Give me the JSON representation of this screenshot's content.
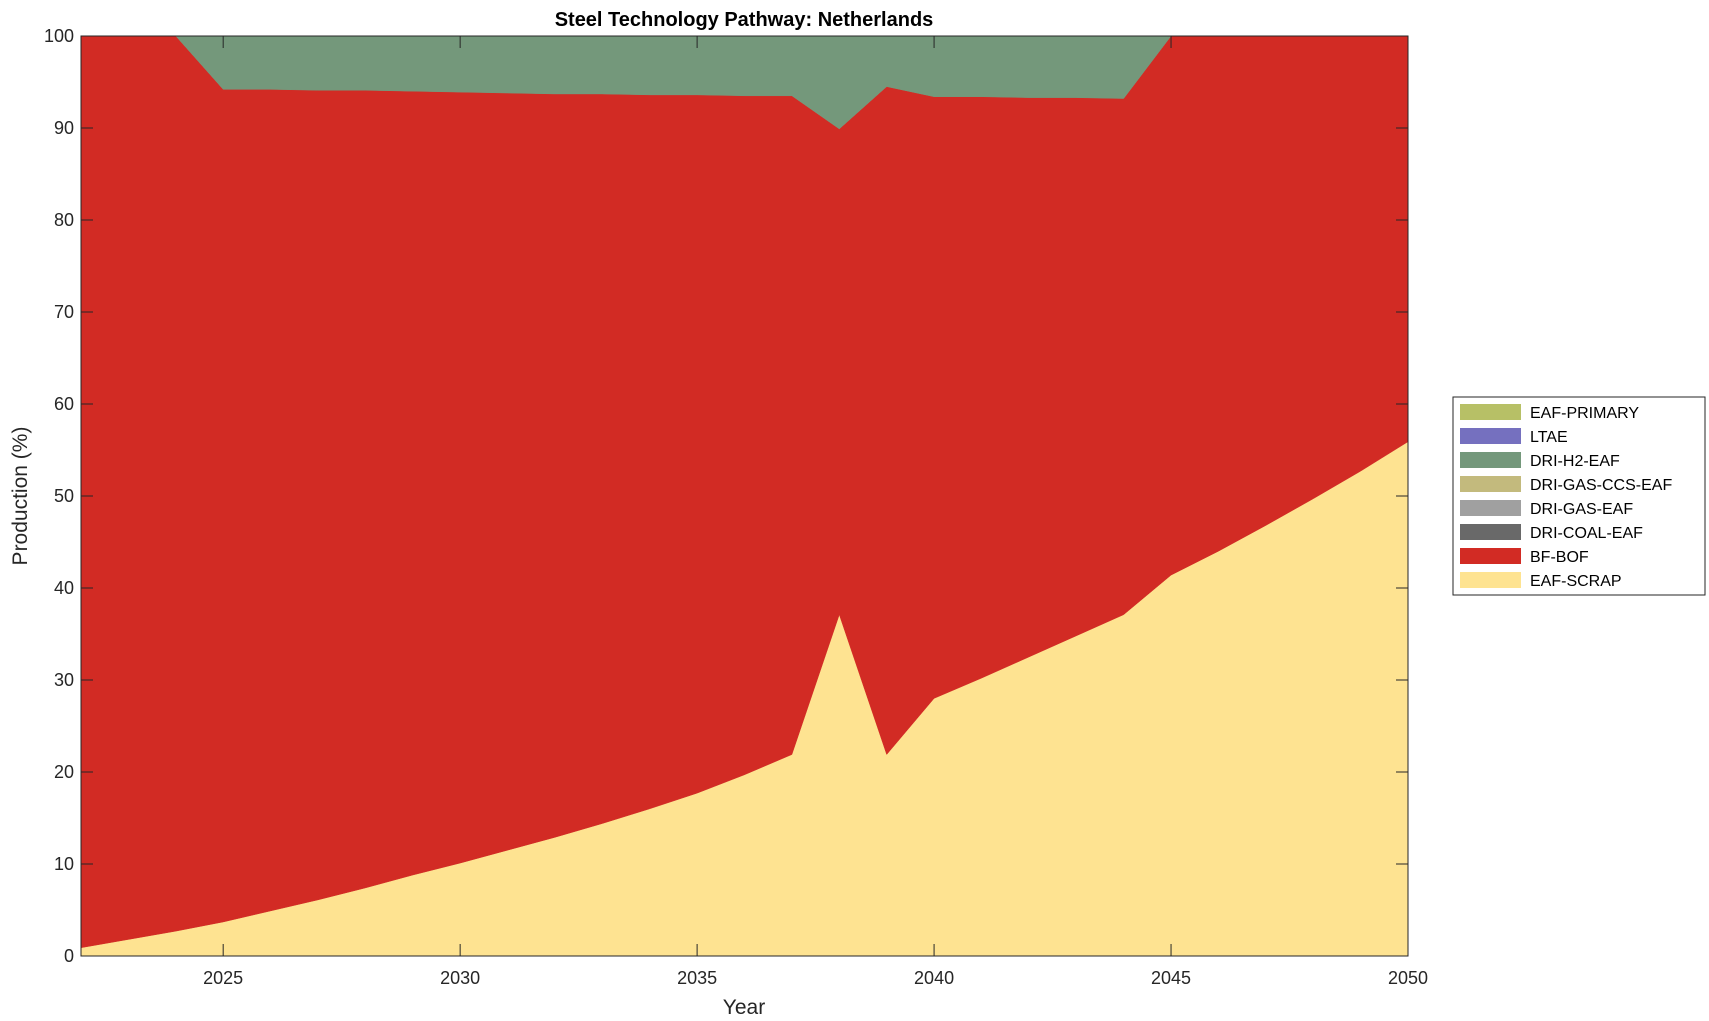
{
  "chart_data": {
    "type": "area",
    "stacked": true,
    "title": "Steel Technology Pathway: Netherlands",
    "xlabel": "Year",
    "ylabel": "Production (%)",
    "xlim": [
      2022,
      2050
    ],
    "ylim": [
      0,
      100
    ],
    "x_ticks": [
      2025,
      2030,
      2035,
      2040,
      2045,
      2050
    ],
    "y_ticks": [
      0,
      10,
      20,
      30,
      40,
      50,
      60,
      70,
      80,
      90,
      100
    ],
    "grid": false,
    "legend_position": "right",
    "x": [
      2022,
      2023,
      2024,
      2025,
      2026,
      2027,
      2028,
      2029,
      2030,
      2031,
      2032,
      2033,
      2034,
      2035,
      2036,
      2037,
      2038,
      2039,
      2040,
      2041,
      2042,
      2043,
      2044,
      2045,
      2046,
      2047,
      2048,
      2049,
      2050
    ],
    "series": [
      {
        "name": "EAF-SCRAP",
        "color": "#FEE391",
        "values": [
          0.9,
          1.8,
          2.7,
          3.7,
          4.9,
          6.1,
          7.4,
          8.8,
          10.1,
          11.5,
          12.9,
          14.4,
          16.0,
          17.7,
          19.7,
          21.9,
          37.1,
          21.9,
          28.0,
          30.2,
          32.5,
          34.8,
          37.1,
          41.4,
          44.0,
          46.8,
          49.7,
          52.7,
          55.9
        ]
      },
      {
        "name": "BF-BOF",
        "color": "#D22B24",
        "values": [
          99.1,
          98.2,
          97.3,
          90.5,
          89.3,
          88.0,
          86.7,
          85.2,
          83.8,
          82.3,
          80.8,
          79.3,
          77.6,
          75.9,
          73.8,
          71.6,
          52.8,
          72.6,
          65.4,
          63.2,
          60.8,
          58.5,
          56.1,
          58.6,
          56.0,
          53.2,
          50.3,
          47.3,
          44.1
        ]
      },
      {
        "name": "DRI-COAL-EAF",
        "color": "#696969",
        "values": [
          0,
          0,
          0,
          0,
          0,
          0,
          0,
          0,
          0,
          0,
          0,
          0,
          0,
          0,
          0,
          0,
          0,
          0,
          0,
          0,
          0,
          0,
          0,
          0,
          0,
          0,
          0,
          0,
          0
        ]
      },
      {
        "name": "DRI-GAS-EAF",
        "color": "#A0A0A0",
        "values": [
          0,
          0,
          0,
          0,
          0,
          0,
          0,
          0,
          0,
          0,
          0,
          0,
          0,
          0,
          0,
          0,
          0,
          0,
          0,
          0,
          0,
          0,
          0,
          0,
          0,
          0,
          0,
          0,
          0
        ]
      },
      {
        "name": "DRI-GAS-CCS-EAF",
        "color": "#C3BA7D",
        "values": [
          0,
          0,
          0,
          0,
          0,
          0,
          0,
          0,
          0,
          0,
          0,
          0,
          0,
          0,
          0,
          0,
          0,
          0,
          0,
          0,
          0,
          0,
          0,
          0,
          0,
          0,
          0,
          0,
          0
        ]
      },
      {
        "name": "DRI-H2-EAF",
        "color": "#74987B",
        "values": [
          0,
          0,
          0,
          5.8,
          5.8,
          5.9,
          5.9,
          6.0,
          6.1,
          6.2,
          6.3,
          6.3,
          6.4,
          6.4,
          6.5,
          6.5,
          10.1,
          5.5,
          6.6,
          6.6,
          6.7,
          6.7,
          6.8,
          0,
          0,
          0,
          0,
          0,
          0
        ]
      },
      {
        "name": "LTAE",
        "color": "#7570BF",
        "values": [
          0,
          0,
          0,
          0,
          0,
          0,
          0,
          0,
          0,
          0,
          0,
          0,
          0,
          0,
          0,
          0,
          0,
          0,
          0,
          0,
          0,
          0,
          0,
          0,
          0,
          0,
          0,
          0,
          0
        ]
      },
      {
        "name": "EAF-PRIMARY",
        "color": "#B7C066",
        "values": [
          0,
          0,
          0,
          0,
          0,
          0,
          0,
          0,
          0,
          0,
          0,
          0,
          0,
          0,
          0,
          0,
          0,
          0,
          0,
          0,
          0,
          0,
          0,
          0,
          0,
          0,
          0,
          0,
          0
        ]
      }
    ],
    "legend_order": [
      "EAF-PRIMARY",
      "LTAE",
      "DRI-H2-EAF",
      "DRI-GAS-CCS-EAF",
      "DRI-GAS-EAF",
      "DRI-COAL-EAF",
      "BF-BOF",
      "EAF-SCRAP"
    ]
  }
}
